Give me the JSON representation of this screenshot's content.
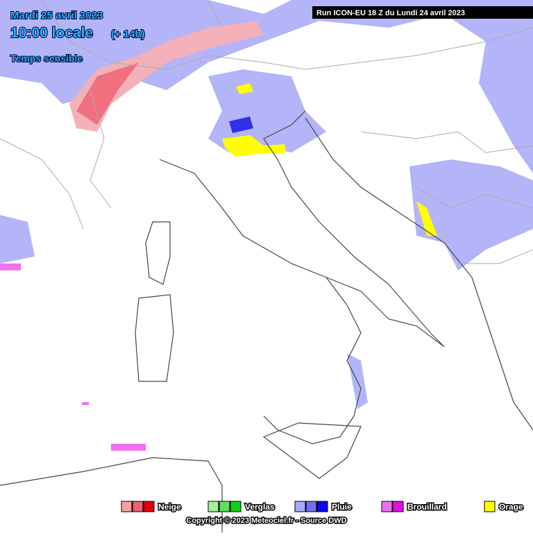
{
  "header": {
    "date": "Mardi 25 avril 2023",
    "time": "10:00 locale",
    "offset": "(+ 14h)",
    "product": "Temps sensible",
    "run": "Run ICON-EU 18 Z du Lundi 24 avril 2023"
  },
  "legend": [
    {
      "name": "Neige",
      "colors": [
        "#f4a0a8",
        "#f06070",
        "#e00010"
      ]
    },
    {
      "name": "Verglas",
      "colors": [
        "#a0f0a0",
        "#60e060",
        "#10d010"
      ]
    },
    {
      "name": "Pluie",
      "colors": [
        "#a8a8f8",
        "#7070f0",
        "#0808e8"
      ]
    },
    {
      "name": "Brouillard",
      "colors": [
        "#f070f0",
        "#e010e0"
      ]
    },
    {
      "name": "Orage",
      "colors": [
        "#ffff00"
      ]
    }
  ],
  "footer": {
    "copyright": "Copyright © 2023 Meteociel.fr - Source DWD"
  }
}
